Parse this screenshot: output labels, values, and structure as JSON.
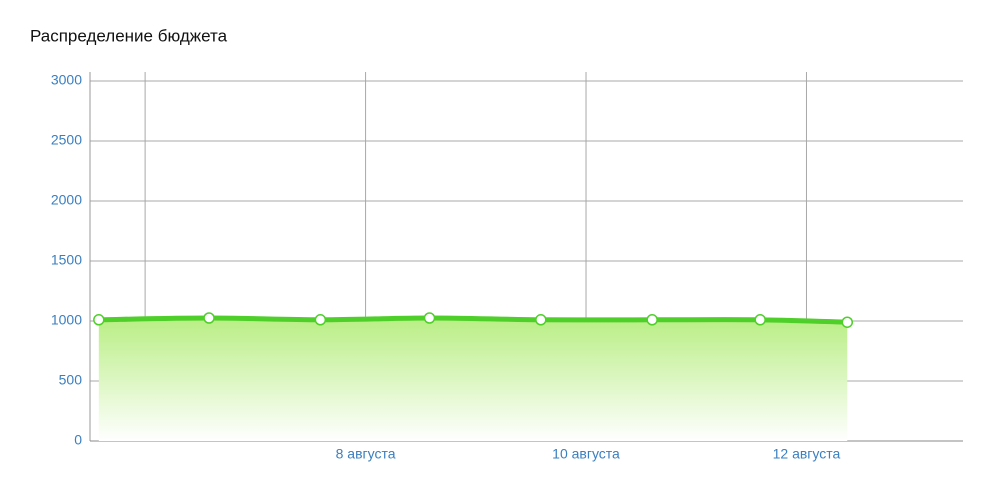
{
  "chart_data": {
    "type": "area",
    "title": "Распределение бюджета",
    "x": [
      5.58,
      6.58,
      7.59,
      8.58,
      9.59,
      10.6,
      11.58,
      12.37
    ],
    "values": [
      1010,
      1025,
      1010,
      1025,
      1010,
      1010,
      1010,
      990
    ],
    "color": "#4fcf2a",
    "fill_color": "#b9ee84",
    "xlim": [
      5.5,
      13.42
    ],
    "xticks": [
      {
        "value": 6,
        "label": null
      },
      {
        "value": 8,
        "label": "8 августа"
      },
      {
        "value": 10,
        "label": "10 августа"
      },
      {
        "value": 12,
        "label": "12 августа"
      }
    ],
    "ylim": [
      0,
      3000
    ],
    "yticks": [
      0,
      500,
      1000,
      1500,
      2000,
      2500,
      3000
    ],
    "grid": true
  }
}
